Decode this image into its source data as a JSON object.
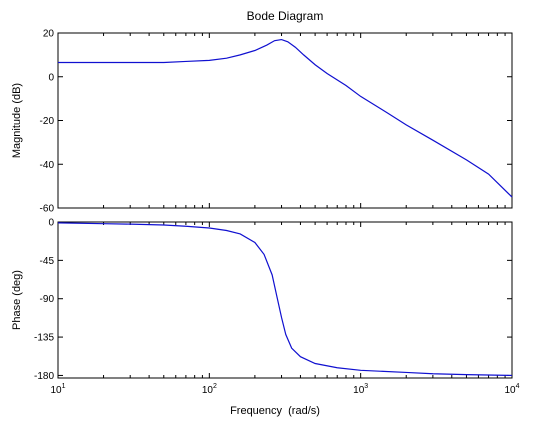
{
  "chart_data": [
    {
      "type": "line",
      "title": "Bode Diagram",
      "ylabel": "Magnitude (dB)",
      "xlabel": "",
      "xscale": "log",
      "xlim": [
        10,
        10000
      ],
      "ylim": [
        -60,
        20
      ],
      "yticks": [
        {
          "value": 20,
          "label": "20"
        },
        {
          "value": 0,
          "label": "0"
        },
        {
          "value": -20,
          "label": "-20"
        },
        {
          "value": -40,
          "label": "-40"
        },
        {
          "value": -60,
          "label": "-60"
        }
      ],
      "grid": false,
      "legend": "none",
      "series": [
        {
          "color": "#1010d0",
          "x": [
            10,
            20,
            30,
            50,
            70,
            100,
            130,
            160,
            200,
            240,
            270,
            300,
            330,
            370,
            420,
            500,
            600,
            800,
            1000,
            1500,
            2000,
            3000,
            5000,
            7000,
            10000
          ],
          "y": [
            6.5,
            6.5,
            6.5,
            6.5,
            7,
            7.5,
            8.5,
            10,
            12,
            14.5,
            16.5,
            17,
            16,
            13.5,
            10,
            5.5,
            1.5,
            -4,
            -9,
            -16.5,
            -22,
            -29,
            -38,
            -44.5,
            -55
          ]
        }
      ]
    },
    {
      "type": "line",
      "title": "",
      "ylabel": "Phase (deg)",
      "xlabel": "Frequency  (rad/s)",
      "xscale": "log",
      "xlim": [
        10,
        10000
      ],
      "ylim": [
        -183,
        0
      ],
      "xticks": [
        {
          "value": 10,
          "base": "10",
          "exp": "1"
        },
        {
          "value": 100,
          "base": "10",
          "exp": "2"
        },
        {
          "value": 1000,
          "base": "10",
          "exp": "3"
        },
        {
          "value": 10000,
          "base": "10",
          "exp": "4"
        }
      ],
      "yticks": [
        {
          "value": 0,
          "label": "0"
        },
        {
          "value": -45,
          "label": "-45"
        },
        {
          "value": -90,
          "label": "-90"
        },
        {
          "value": -135,
          "label": "-135"
        },
        {
          "value": -180,
          "label": "-180"
        }
      ],
      "grid": false,
      "legend": "none",
      "series": [
        {
          "color": "#1010d0",
          "x": [
            10,
            20,
            30,
            50,
            70,
            100,
            130,
            160,
            200,
            230,
            260,
            280,
            300,
            320,
            350,
            400,
            500,
            700,
            1000,
            2000,
            3000,
            5000,
            10000
          ],
          "y": [
            -1,
            -2,
            -2.5,
            -3.5,
            -5,
            -7,
            -10,
            -14,
            -24,
            -38,
            -62,
            -88,
            -112,
            -132,
            -148,
            -158,
            -166,
            -171,
            -174,
            -176.5,
            -178,
            -179,
            -180
          ]
        }
      ]
    }
  ]
}
